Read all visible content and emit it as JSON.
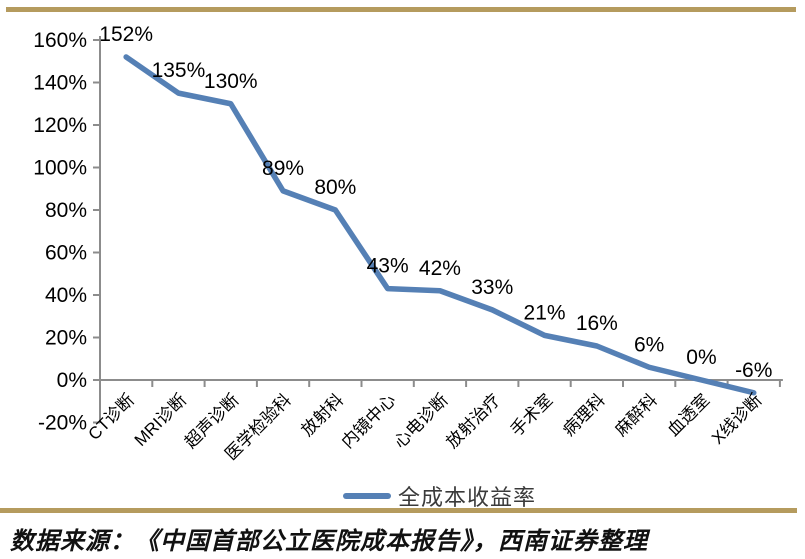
{
  "chart_data": {
    "type": "line",
    "categories": [
      "CT诊断",
      "MRI诊断",
      "超声诊断",
      "医学检验科",
      "放射科",
      "内镜中心",
      "心电诊断",
      "放射治疗",
      "手术室",
      "病理科",
      "麻醉科",
      "血透室",
      "X线诊断"
    ],
    "series": [
      {
        "name": "全成本收益率",
        "values": [
          152,
          135,
          130,
          89,
          80,
          43,
          42,
          33,
          21,
          16,
          6,
          0,
          -6
        ],
        "data_labels": [
          "152%",
          "135%",
          "130%",
          "89%",
          "80%",
          "43%",
          "42%",
          "33%",
          "21%",
          "16%",
          "6%",
          "0%",
          "-6%"
        ]
      }
    ],
    "ylim": [
      -20,
      160
    ],
    "ytick_step": 20,
    "ytick_labels": [
      "160%",
      "140%",
      "120%",
      "100%",
      "80%",
      "60%",
      "40%",
      "20%",
      "0%",
      "-20%"
    ],
    "grid": false,
    "legend_position": "bottom",
    "line_color": "#5580B5",
    "axis_color": "#8C8C8C"
  },
  "footer": {
    "source": "数据来源：《中国首部公立医院成本报告》，西南证券整理"
  },
  "colors": {
    "accent_gold": "#B59B5E"
  }
}
